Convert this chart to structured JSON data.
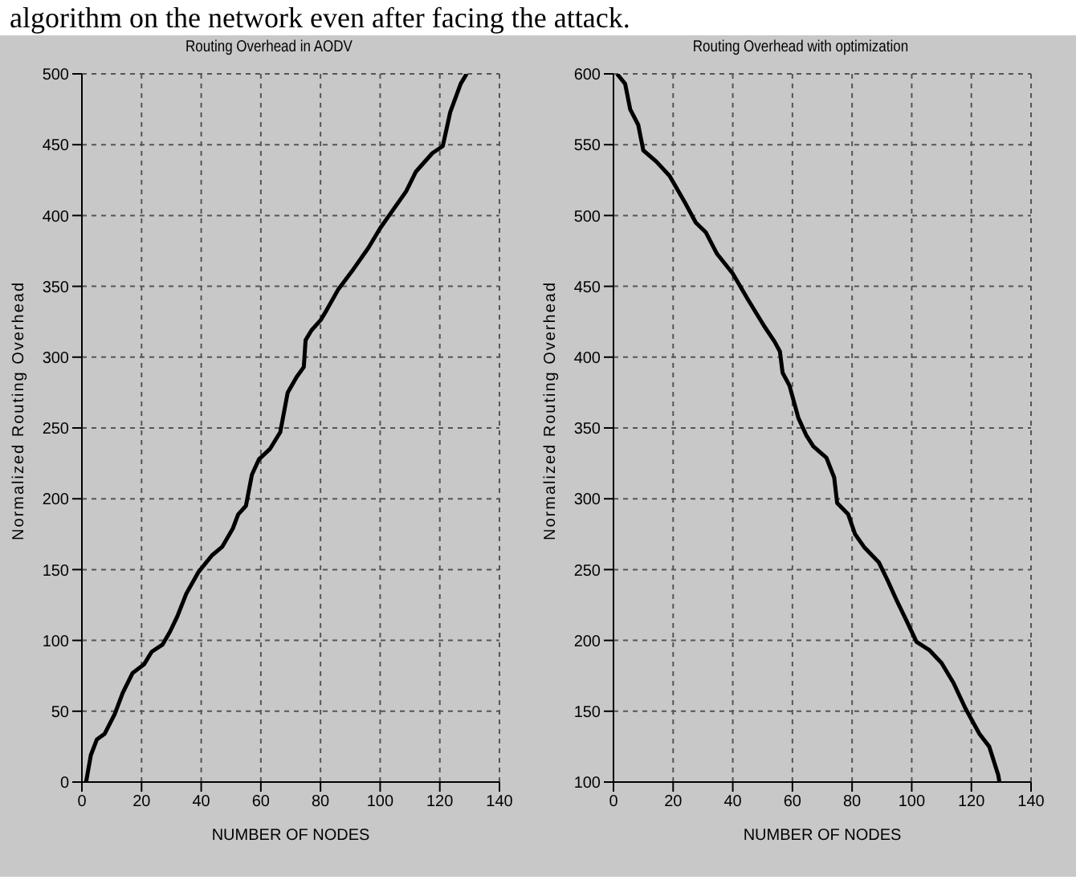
{
  "chart_data": [
    {
      "type": "line",
      "title": "Routing Overhead in AODV",
      "xlabel": "NUMBER OF NODES",
      "ylabel": "Normalized Routing Overhead",
      "annotations": [
        "algorithm on the network even after facing the attack."
      ],
      "xlim": [
        0,
        140
      ],
      "xticks": [
        0,
        20,
        40,
        60,
        80,
        100,
        120,
        140
      ],
      "ylim": [
        0,
        500
      ],
      "yticks": [
        0,
        50,
        100,
        150,
        200,
        250,
        300,
        350,
        400,
        450,
        500
      ],
      "grid": true,
      "marker": "none",
      "line_style": "solid",
      "series": [
        {
          "color": "#000000",
          "x": [
            1.4,
            3,
            5,
            7.6,
            11,
            13.7,
            17,
            20.8,
            23.4,
            27,
            29.5,
            32,
            35,
            39,
            43.6,
            47,
            50.6,
            52.4,
            55,
            57,
            59.4,
            63,
            66.5,
            69,
            72,
            74.4,
            75,
            77,
            80,
            82,
            86,
            91,
            96,
            100,
            103,
            108.7,
            112,
            117.5,
            121,
            123.5,
            127,
            129
          ],
          "values": [
            0,
            19,
            30,
            34,
            48,
            63,
            77,
            83,
            92,
            97,
            106,
            117,
            133,
            148,
            160,
            166,
            179,
            189,
            195,
            217,
            228,
            235,
            247,
            275,
            286,
            293,
            312,
            319,
            326,
            333,
            348,
            362,
            377,
            391,
            400,
            417,
            431,
            444,
            449,
            473,
            493,
            500
          ]
        }
      ]
    },
    {
      "type": "line",
      "title": "Routing Overhead with optimization",
      "xlabel": "NUMBER OF NODES",
      "ylabel": "Normalized Routing Overhead",
      "xlim": [
        0,
        140
      ],
      "xticks": [
        0,
        20,
        40,
        60,
        80,
        100,
        120,
        140
      ],
      "ylim": [
        100,
        600
      ],
      "yticks": [
        100,
        150,
        200,
        250,
        300,
        350,
        400,
        450,
        500,
        550,
        600
      ],
      "grid": true,
      "marker": "none",
      "line_style": "solid",
      "series": [
        {
          "color": "#000000",
          "x": [
            1.2,
            3.9,
            5.6,
            8.3,
            10,
            14.4,
            18.8,
            24,
            27.6,
            31,
            34.7,
            40,
            45,
            50.5,
            54,
            55.8,
            56.7,
            59,
            62,
            64.6,
            67,
            71.4,
            74,
            75,
            78.7,
            81,
            84,
            89,
            92,
            95,
            98,
            101.6,
            106,
            110,
            114,
            118,
            122.7,
            126,
            129,
            129.4
          ],
          "values": [
            600,
            593,
            575,
            564,
            546,
            538,
            528,
            509,
            495,
            488,
            473,
            459,
            441,
            422,
            411,
            404,
            389,
            380,
            357,
            345,
            337,
            329,
            315,
            297,
            289,
            275,
            266,
            255,
            242,
            228,
            215,
            199,
            193,
            184,
            170,
            152,
            134,
            125,
            105,
            100
          ]
        }
      ]
    }
  ]
}
